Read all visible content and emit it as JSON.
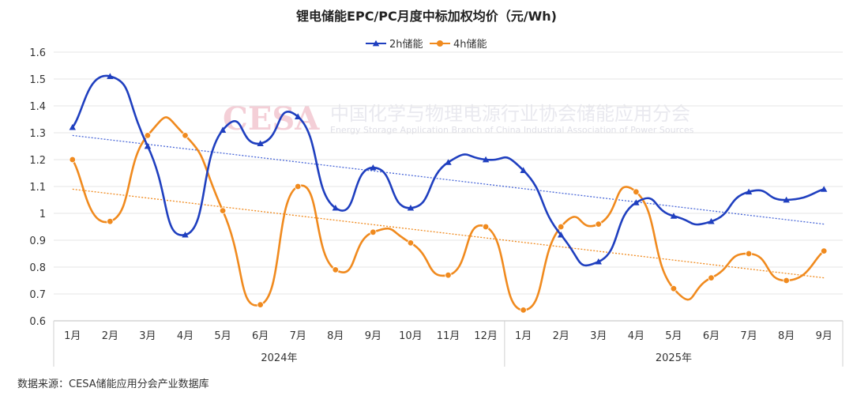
{
  "chart_data": {
    "type": "line",
    "title": "锂电储能EPC/PC月度中标加权均价（元/Wh)",
    "xlabel": "",
    "ylabel": "",
    "ylim": [
      0.6,
      1.6
    ],
    "y_ticks": [
      "0.6",
      "0.7",
      "0.8",
      "0.9",
      "1",
      "1.1",
      "1.2",
      "1.3",
      "1.4",
      "1.5",
      "1.6"
    ],
    "grid": true,
    "legend_position": "top-center",
    "categories": [
      "1月",
      "2月",
      "3月",
      "4月",
      "5月",
      "6月",
      "7月",
      "8月",
      "9月",
      "10月",
      "11月",
      "12月",
      "1月",
      "2月",
      "3月",
      "4月",
      "5月",
      "6月",
      "7月",
      "8月",
      "9月"
    ],
    "year_groups": [
      {
        "label": "2024年",
        "count": 12
      },
      {
        "label": "2025年",
        "count": 9
      }
    ],
    "series": [
      {
        "name": "2h储能",
        "color": "#1f3fbf",
        "marker": "triangle",
        "values": [
          1.32,
          1.51,
          1.25,
          0.92,
          1.31,
          1.26,
          1.36,
          1.02,
          1.17,
          1.02,
          1.19,
          1.2,
          1.16,
          0.92,
          0.82,
          1.04,
          0.99,
          0.97,
          1.08,
          1.05,
          1.09
        ],
        "trendline": {
          "start": 1.29,
          "end": 0.96,
          "color": "#4a68d8"
        }
      },
      {
        "name": "4h储能",
        "color": "#f08a1e",
        "marker": "circle",
        "values": [
          1.2,
          0.97,
          1.29,
          1.29,
          1.01,
          0.66,
          1.1,
          0.79,
          0.93,
          0.89,
          0.77,
          0.95,
          0.64,
          0.95,
          0.96,
          1.08,
          0.72,
          0.76,
          0.85,
          0.75,
          0.86
        ],
        "trendline": {
          "start": 1.09,
          "end": 0.76,
          "color": "#f08a1e"
        }
      }
    ]
  },
  "watermark": {
    "logo": "CESA",
    "title": "中国化学与物理电源行业协会储能应用分会",
    "subtitle": "Energy Storage Application Branch of China Industrial Association of Power Sources"
  },
  "source_note": "数据来源：CESA储能应用分会产业数据库"
}
